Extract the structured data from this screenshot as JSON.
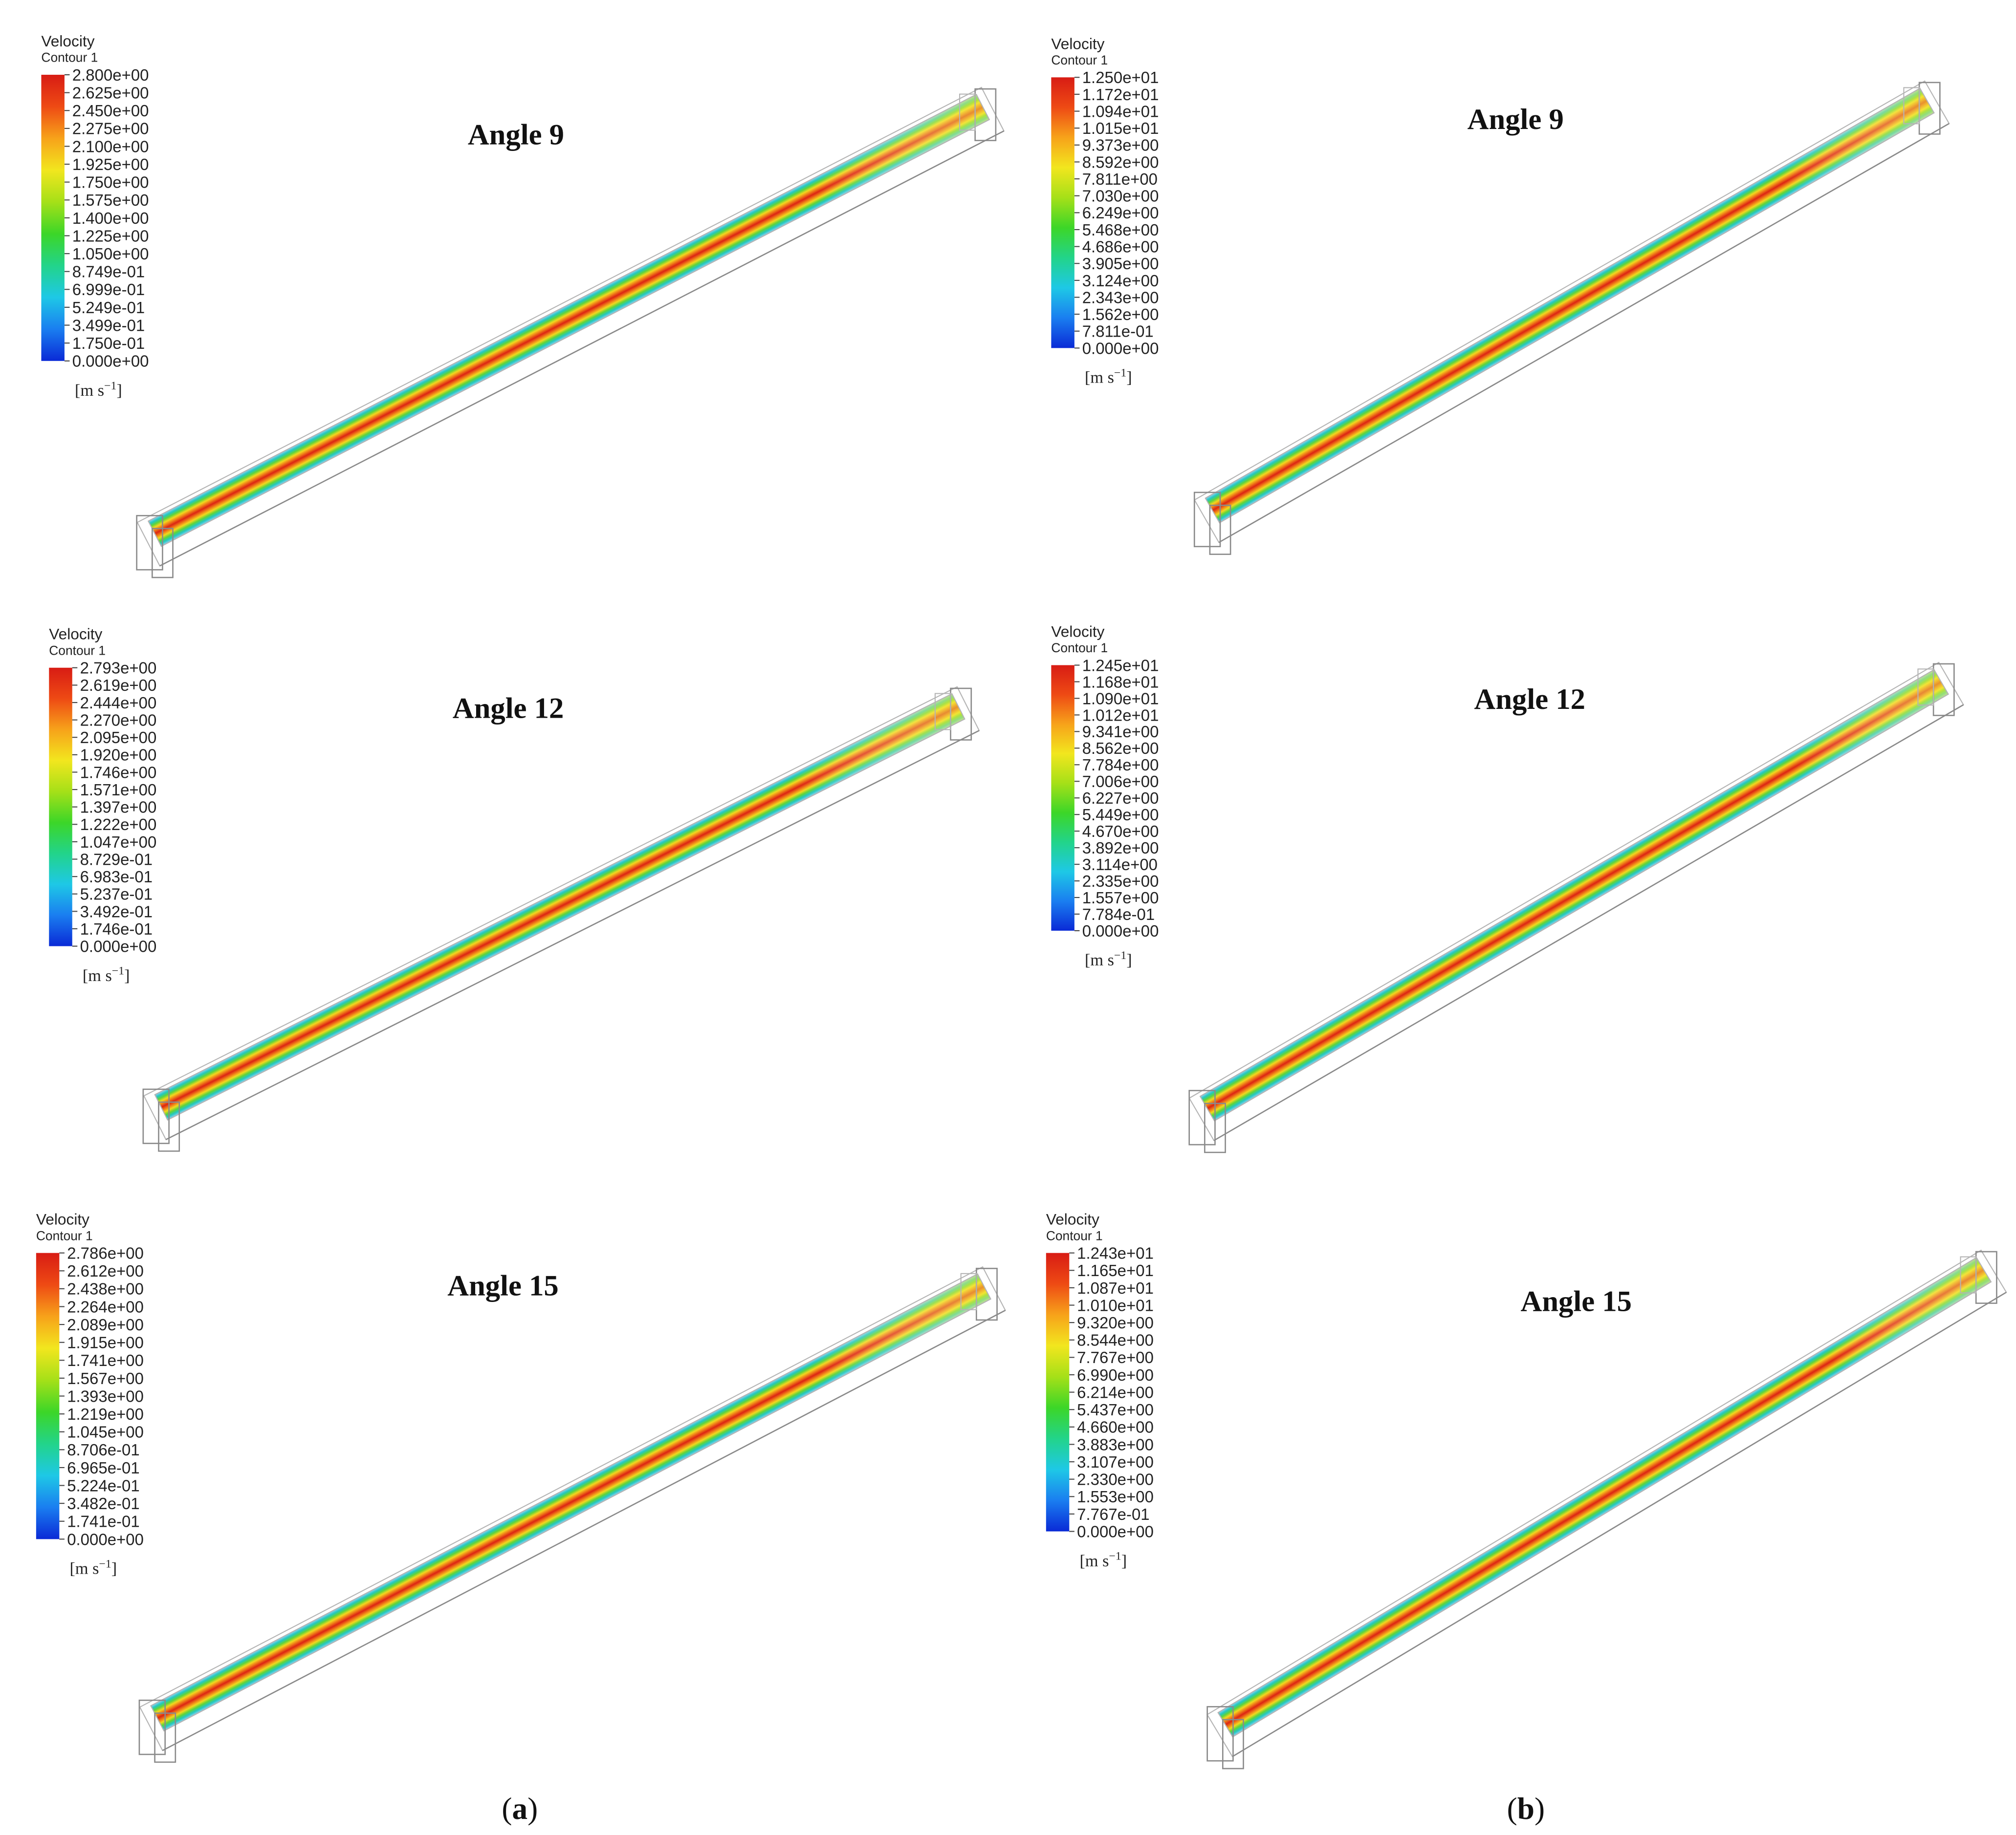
{
  "figure": {
    "caption_a": "a",
    "caption_b": "b",
    "colorbar": {
      "colors": [
        "#0a2ad6",
        "#1a7ef0",
        "#1ec8e6",
        "#22d48a",
        "#3cd628",
        "#a6e018",
        "#f2e61e",
        "#f7a21a",
        "#ee4a14",
        "#d81c14"
      ]
    },
    "panels": [
      {
        "title": "Angle 9",
        "legend_title": "Velocity",
        "legend_subtitle": "Contour 1",
        "unit": "[m s",
        "unit_sup": "−1",
        "unit_close": "]",
        "ticks": [
          "2.800e+00",
          "2.625e+00",
          "2.450e+00",
          "2.275e+00",
          "2.100e+00",
          "1.925e+00",
          "1.750e+00",
          "1.575e+00",
          "1.400e+00",
          "1.225e+00",
          "1.050e+00",
          "8.749e-01",
          "6.999e-01",
          "5.249e-01",
          "3.499e-01",
          "1.750e-01",
          "0.000e+00"
        ]
      },
      {
        "title": "Angle 9",
        "legend_title": "Velocity",
        "legend_subtitle": "Contour 1",
        "unit": "[m s",
        "unit_sup": "−1",
        "unit_close": "]",
        "ticks": [
          "1.250e+01",
          "1.172e+01",
          "1.094e+01",
          "1.015e+01",
          "9.373e+00",
          "8.592e+00",
          "7.811e+00",
          "7.030e+00",
          "6.249e+00",
          "5.468e+00",
          "4.686e+00",
          "3.905e+00",
          "3.124e+00",
          "2.343e+00",
          "1.562e+00",
          "7.811e-01",
          "0.000e+00"
        ]
      },
      {
        "title": "Angle 12",
        "legend_title": "Velocity",
        "legend_subtitle": "Contour 1",
        "unit": "[m s",
        "unit_sup": "−1",
        "unit_close": "]",
        "ticks": [
          "2.793e+00",
          "2.619e+00",
          "2.444e+00",
          "2.270e+00",
          "2.095e+00",
          "1.920e+00",
          "1.746e+00",
          "1.571e+00",
          "1.397e+00",
          "1.222e+00",
          "1.047e+00",
          "8.729e-01",
          "6.983e-01",
          "5.237e-01",
          "3.492e-01",
          "1.746e-01",
          "0.000e+00"
        ]
      },
      {
        "title": "Angle 12",
        "legend_title": "Velocity",
        "legend_subtitle": "Contour 1",
        "unit": "[m s",
        "unit_sup": "−1",
        "unit_close": "]",
        "ticks": [
          "1.245e+01",
          "1.168e+01",
          "1.090e+01",
          "1.012e+01",
          "9.341e+00",
          "8.562e+00",
          "7.784e+00",
          "7.006e+00",
          "6.227e+00",
          "5.449e+00",
          "4.670e+00",
          "3.892e+00",
          "3.114e+00",
          "2.335e+00",
          "1.557e+00",
          "7.784e-01",
          "0.000e+00"
        ]
      },
      {
        "title": "Angle 15",
        "legend_title": "Velocity",
        "legend_subtitle": "Contour 1",
        "unit": "[m s",
        "unit_sup": "−1",
        "unit_close": "]",
        "ticks": [
          "2.786e+00",
          "2.612e+00",
          "2.438e+00",
          "2.264e+00",
          "2.089e+00",
          "1.915e+00",
          "1.741e+00",
          "1.567e+00",
          "1.393e+00",
          "1.219e+00",
          "1.045e+00",
          "8.706e-01",
          "6.965e-01",
          "5.224e-01",
          "3.482e-01",
          "1.741e-01",
          "0.000e+00"
        ]
      },
      {
        "title": "Angle 15",
        "legend_title": "Velocity",
        "legend_subtitle": "Contour 1",
        "unit": "[m s",
        "unit_sup": "−1",
        "unit_close": "]",
        "ticks": [
          "1.243e+01",
          "1.165e+01",
          "1.087e+01",
          "1.010e+01",
          "9.320e+00",
          "8.544e+00",
          "7.767e+00",
          "6.990e+00",
          "6.214e+00",
          "5.437e+00",
          "4.660e+00",
          "3.883e+00",
          "3.107e+00",
          "2.330e+00",
          "1.553e+00",
          "7.767e-01",
          "0.000e+00"
        ]
      }
    ]
  }
}
